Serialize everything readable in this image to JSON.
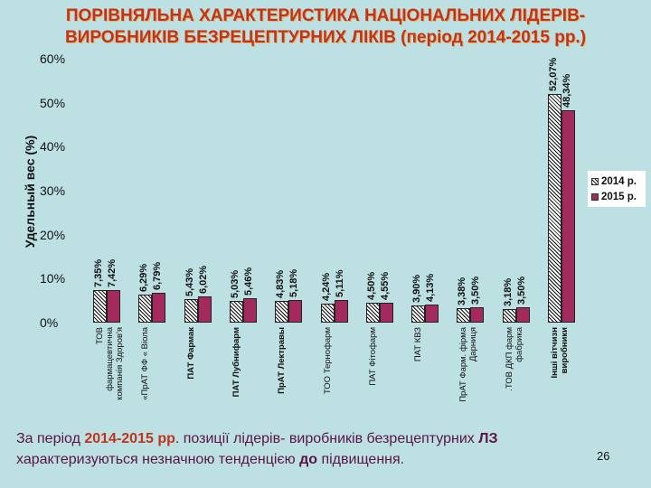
{
  "title": {
    "line1": "ПОРІВНЯЛЬНА ХАРАКТЕРИСТИКА НАЦІОНАЛЬНИХ ЛІДЕРІВ-",
    "line2": "ВИРОБНИКІВ БЕЗРЕЦЕПТУРНИХ ЛІКІВ (період 2014-2015 рр.)"
  },
  "chart_data": {
    "type": "bar",
    "title": "ПОРІВНЯЛЬНА ХАРАКТЕРИСТИКА НАЦІОНАЛЬНИХ ЛІДЕРІВ-ВИРОБНИКІВ БЕЗРЕЦЕПТУРНИХ ЛІКІВ (період 2014-2015 рр.)",
    "xlabel": "",
    "ylabel": "Удельный вес (%)",
    "ylim": [
      0,
      60
    ],
    "yticks": [
      "0%",
      "10%",
      "20%",
      "30%",
      "40%",
      "50%",
      "60%"
    ],
    "grid": false,
    "legend_position": "right",
    "categories": [
      "ТОВ фармацевтична компанія Здоров'я",
      "«ПрАТ ФФ « Віола",
      "ПАТ Фармак",
      "ПАТ Лубнифарм",
      "ПрАТ Лектравы",
      "ТОО Тернофарм",
      "ПАТ Фітофарм",
      "ПАТ КВЗ",
      "ПрАТ Фарм. фірма Дарниця",
      "ТОВ ДКП фарм фабрика",
      "Інші вітчизн виробники"
    ],
    "series": [
      {
        "name": "2014 р.",
        "values": [
          7.35,
          6.29,
          5.43,
          5.03,
          4.83,
          4.24,
          4.5,
          3.9,
          3.38,
          3.18,
          52.07
        ],
        "labels": [
          "7,35%",
          "6,29%",
          "5,43%",
          "5,03%",
          "4,83%",
          "4,24%",
          "4,50%",
          "3,90%",
          "3,38%",
          "3,18%",
          "52,07%"
        ]
      },
      {
        "name": "2015 р.",
        "values": [
          7.42,
          6.79,
          6.02,
          5.46,
          5.18,
          5.11,
          4.55,
          4.13,
          3.5,
          3.5,
          48.34
        ],
        "labels": [
          "7,42%",
          "6,79%",
          "6,02%",
          "5,46%",
          "5,18%",
          "5,11%",
          "4,55%",
          "4,13%",
          "3,50%",
          "3,50%",
          "48,34%"
        ]
      }
    ]
  },
  "cat_labels": [
    "ТОВ\nфармацевтична\nкомпанія Здоров'я",
    "«ПрАТ ФФ « Віола",
    "ПАТ Фармак",
    "ПАТ Лубнифарм",
    "ПрАТ Лектравы",
    "ТОО Тернофарм",
    "ПАТ Фітофарм",
    "ПАТ КВЗ",
    "ПрАТ Фарм. фірма\nДарниця",
    ".ТОВ ДКП фарм\nфабрика",
    "Інші вітчизн\nвиробники"
  ],
  "legend": {
    "a": "2014 р.",
    "b": "2015 р."
  },
  "colors": {
    "bg": "#bde0e3",
    "bar2015": "#a32a5c",
    "title": "#c0341c",
    "footer": "#5a1446"
  },
  "footer": {
    "p1": "За період ",
    "p2": "2014-2015 рр",
    "p3": ". позиції лідерів- виробників безрецептурних ",
    "p4": "ЛЗ",
    "p5": "характеризуються незначною тенденцією ",
    "p6": "до",
    "p7": " підвищення."
  },
  "page_number": "26"
}
